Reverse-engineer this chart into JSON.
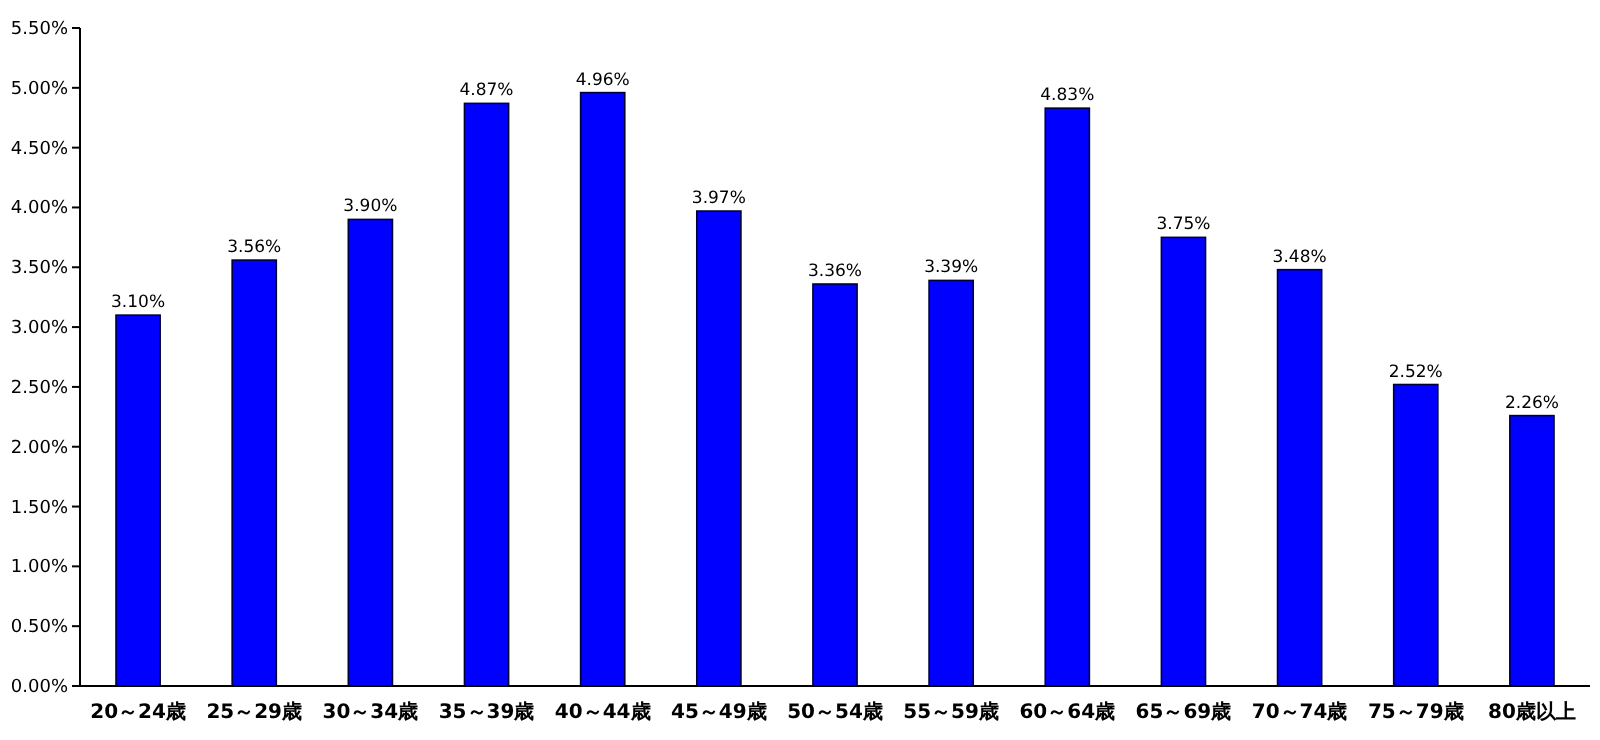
{
  "chart_data": {
    "type": "bar",
    "categories": [
      "20～24歳",
      "25～29歳",
      "30～34歳",
      "35～39歳",
      "40～44歳",
      "45～49歳",
      "50～54歳",
      "55～59歳",
      "60～64歳",
      "65～69歳",
      "70～74歳",
      "75～79歳",
      "80歳以上"
    ],
    "values": [
      3.1,
      3.56,
      3.9,
      4.87,
      4.96,
      3.97,
      3.36,
      3.39,
      4.83,
      3.75,
      3.48,
      2.52,
      2.26
    ],
    "value_labels": [
      "3.10%",
      "3.56%",
      "3.90%",
      "4.87%",
      "4.96%",
      "3.97%",
      "3.36%",
      "3.39%",
      "4.83%",
      "3.75%",
      "3.48%",
      "2.52%",
      "2.26%"
    ],
    "color": "#0000ff",
    "ylim": [
      0,
      5.5
    ],
    "yticks": [
      {
        "value": 0,
        "label": "0.00%"
      },
      {
        "value": 0.5,
        "label": "0.50%"
      },
      {
        "value": 1,
        "label": "1.00%"
      },
      {
        "value": 1.5,
        "label": "1.50%"
      },
      {
        "value": 2,
        "label": "2.00%"
      },
      {
        "value": 2.5,
        "label": "2.50%"
      },
      {
        "value": 3,
        "label": "3.00%"
      },
      {
        "value": 3.5,
        "label": "3.50%"
      },
      {
        "value": 4,
        "label": "4.00%"
      },
      {
        "value": 4.5,
        "label": "4.50%"
      },
      {
        "value": 5,
        "label": "5.00%"
      },
      {
        "value": 5.5,
        "label": "5.50%"
      }
    ],
    "grid": false
  }
}
